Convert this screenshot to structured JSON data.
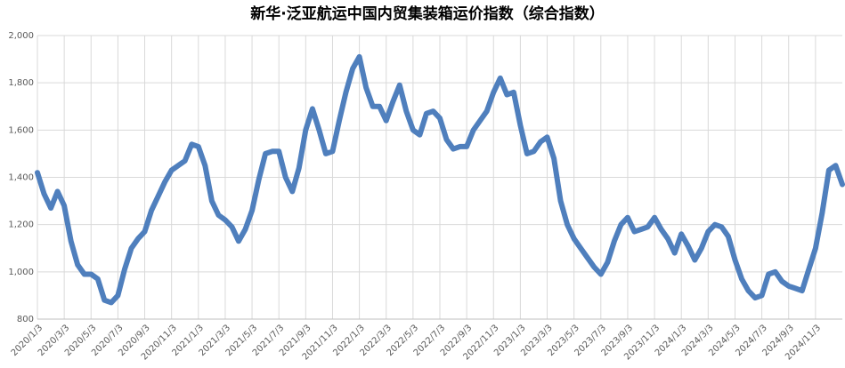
{
  "chart_data": {
    "type": "line",
    "title": "新华·泛亚航运中国内贸集装箱运价指数（综合指数）",
    "categories": [
      "2020/1/3",
      null,
      null,
      null,
      "2020/3/3",
      null,
      null,
      null,
      "2020/5/3",
      null,
      null,
      null,
      "2020/7/3",
      null,
      null,
      null,
      "2020/9/3",
      null,
      null,
      null,
      "2020/11/3",
      null,
      null,
      null,
      "2021/1/3",
      null,
      null,
      null,
      "2021/3/3",
      null,
      null,
      null,
      "2021/5/3",
      null,
      null,
      null,
      "2021/7/3",
      null,
      null,
      null,
      "2021/9/3",
      null,
      null,
      null,
      "2021/11/3",
      null,
      null,
      null,
      "2022/1/3",
      null,
      null,
      null,
      "2022/3/3",
      null,
      null,
      null,
      "2022/5/3",
      null,
      null,
      null,
      "2022/7/3",
      null,
      null,
      null,
      "2022/9/3",
      null,
      null,
      null,
      "2022/11/3",
      null,
      null,
      null,
      "2023/1/3",
      null,
      null,
      null,
      "2023/3/3",
      null,
      null,
      null,
      "2023/5/3",
      null,
      null,
      null,
      "2023/7/3",
      null,
      null,
      null,
      "2023/9/3",
      null,
      null,
      null,
      "2023/11/3",
      null,
      null,
      null,
      "2024/1/3",
      null,
      null,
      null,
      "2024/3/3",
      null,
      null,
      null,
      "2024/5/3",
      null,
      null,
      null,
      "2024/7/3",
      null,
      null,
      null,
      "2024/9/3",
      null,
      null,
      null,
      "2024/11/3",
      null,
      null,
      null,
      null
    ],
    "series": [
      {
        "name": "综合指数",
        "color": "#4f7fbd",
        "values": [
          1420,
          1330,
          1270,
          1340,
          1280,
          1130,
          1030,
          990,
          990,
          970,
          880,
          870,
          900,
          1010,
          1100,
          1140,
          1170,
          1260,
          1320,
          1380,
          1430,
          1450,
          1470,
          1540,
          1530,
          1450,
          1300,
          1240,
          1220,
          1190,
          1130,
          1180,
          1260,
          1390,
          1500,
          1510,
          1510,
          1400,
          1340,
          1440,
          1600,
          1690,
          1600,
          1500,
          1510,
          1640,
          1760,
          1860,
          1910,
          1780,
          1700,
          1700,
          1640,
          1720,
          1790,
          1680,
          1600,
          1580,
          1670,
          1680,
          1650,
          1560,
          1520,
          1530,
          1530,
          1600,
          1640,
          1680,
          1760,
          1820,
          1750,
          1760,
          1620,
          1500,
          1510,
          1550,
          1570,
          1480,
          1300,
          1200,
          1140,
          1100,
          1060,
          1020,
          990,
          1040,
          1130,
          1200,
          1230,
          1170,
          1180,
          1190,
          1230,
          1180,
          1140,
          1080,
          1160,
          1110,
          1050,
          1100,
          1170,
          1200,
          1190,
          1150,
          1050,
          970,
          920,
          890,
          900,
          990,
          1000,
          960,
          940,
          930,
          920,
          1010,
          1100,
          1250,
          1430,
          1450,
          1370
        ]
      }
    ],
    "ylim": [
      800,
      2000
    ],
    "yticks": [
      800,
      {
        "value": 1000,
        "label": "1,000"
      },
      {
        "value": 1200,
        "label": "1,200"
      },
      {
        "value": 1400,
        "label": "1,400"
      },
      {
        "value": 1600,
        "label": "1,600"
      },
      {
        "value": 1800,
        "label": "1,800"
      },
      {
        "value": 2000,
        "label": "2,000"
      }
    ],
    "grid": true
  }
}
